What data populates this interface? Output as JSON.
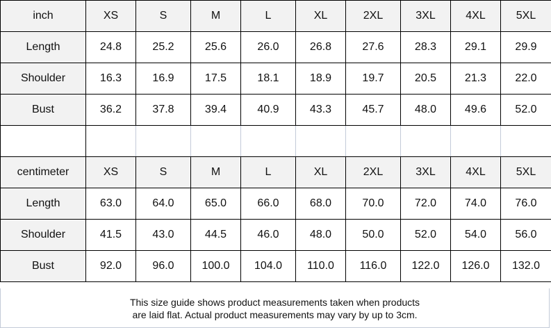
{
  "sizes": [
    "XS",
    "S",
    "M",
    "L",
    "XL",
    "2XL",
    "3XL",
    "4XL",
    "5XL"
  ],
  "inch": {
    "unit_label": "inch",
    "rows": [
      {
        "label": "Length",
        "values": [
          "24.8",
          "25.2",
          "25.6",
          "26.0",
          "26.8",
          "27.6",
          "28.3",
          "29.1",
          "29.9"
        ]
      },
      {
        "label": "Shoulder",
        "values": [
          "16.3",
          "16.9",
          "17.5",
          "18.1",
          "18.9",
          "19.7",
          "20.5",
          "21.3",
          "22.0"
        ]
      },
      {
        "label": "Bust",
        "values": [
          "36.2",
          "37.8",
          "39.4",
          "40.9",
          "43.3",
          "45.7",
          "48.0",
          "49.6",
          "52.0"
        ]
      }
    ]
  },
  "centimeter": {
    "unit_label": "centimeter",
    "rows": [
      {
        "label": "Length",
        "values": [
          "63.0",
          "64.0",
          "65.0",
          "66.0",
          "68.0",
          "70.0",
          "72.0",
          "74.0",
          "76.0"
        ]
      },
      {
        "label": "Shoulder",
        "values": [
          "41.5",
          "43.0",
          "44.5",
          "46.0",
          "48.0",
          "50.0",
          "52.0",
          "54.0",
          "56.0"
        ]
      },
      {
        "label": "Bust",
        "values": [
          "92.0",
          "96.0",
          "100.0",
          "104.0",
          "110.0",
          "116.0",
          "122.0",
          "126.0",
          "132.0"
        ]
      }
    ]
  },
  "note": {
    "line1": "This size guide shows product measurements taken when products",
    "line2": "are laid flat. Actual product measurements may vary by up to 3cm."
  }
}
